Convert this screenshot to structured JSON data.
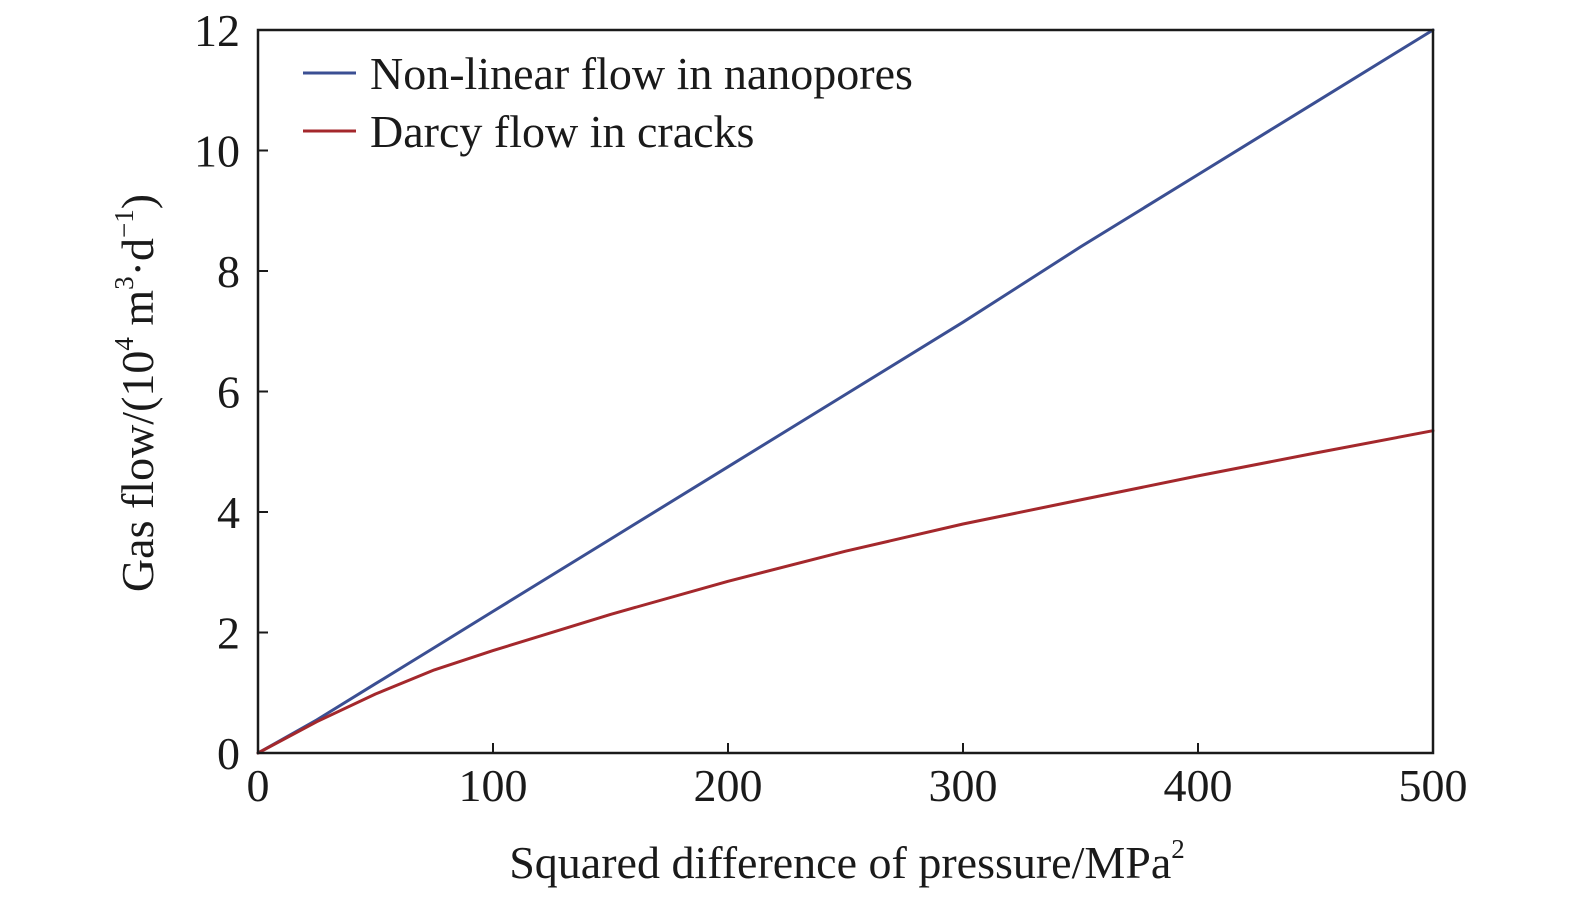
{
  "chart_data": {
    "type": "line",
    "title": "",
    "xlabel": "Squared difference of pressure/MPa",
    "xlabel_sup": "2",
    "ylabel_parts": {
      "prefix": "Gas flow/(10",
      "sup1": "4",
      "mid1": " m",
      "sup2": "3",
      "mid2": "·d",
      "sup3": "−1",
      "suffix": ")"
    },
    "xlim": [
      0,
      500
    ],
    "ylim": [
      0,
      12
    ],
    "xticks": [
      0,
      100,
      200,
      300,
      400,
      500
    ],
    "yticks": [
      0,
      2,
      4,
      6,
      8,
      10,
      12
    ],
    "grid": false,
    "legend_position": "top-left",
    "series": [
      {
        "name": "Non-linear flow in nanopores",
        "color": "#3b4f93",
        "x": [
          0,
          25,
          50,
          75,
          100,
          150,
          200,
          250,
          300,
          350,
          400,
          450,
          500
        ],
        "y": [
          0,
          0.55,
          1.15,
          1.75,
          2.35,
          3.55,
          4.75,
          5.95,
          7.15,
          8.4,
          9.6,
          10.8,
          12.0
        ]
      },
      {
        "name": "Darcy flow in cracks",
        "color": "#a4282c",
        "x": [
          0,
          25,
          50,
          75,
          100,
          150,
          200,
          250,
          300,
          350,
          400,
          450,
          500
        ],
        "y": [
          0,
          0.52,
          0.98,
          1.38,
          1.7,
          2.3,
          2.85,
          3.35,
          3.8,
          4.2,
          4.6,
          4.98,
          5.35
        ]
      }
    ]
  }
}
